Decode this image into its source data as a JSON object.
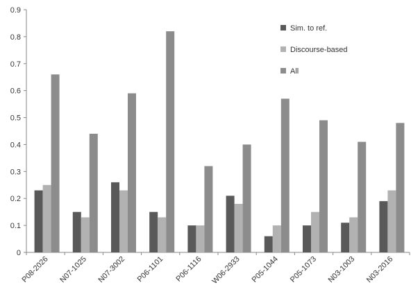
{
  "chart_data": {
    "type": "bar",
    "categories": [
      "P08-2026",
      "N07-1025",
      "N07-3002",
      "P06-1101",
      "P06-1116",
      "W06-2933",
      "P05-1044",
      "P05-1073",
      "N03-1003",
      "N03-2016"
    ],
    "series": [
      {
        "name": "Sim. to ref.",
        "color": "#595959",
        "values": [
          0.23,
          0.15,
          0.26,
          0.15,
          0.1,
          0.21,
          0.06,
          0.1,
          0.11,
          0.19
        ]
      },
      {
        "name": "Discourse-based",
        "color": "#b2b2b2",
        "values": [
          0.25,
          0.13,
          0.23,
          0.13,
          0.1,
          0.18,
          0.1,
          0.15,
          0.13,
          0.23
        ]
      },
      {
        "name": "All",
        "color": "#8c8c8c",
        "values": [
          0.66,
          0.44,
          0.59,
          0.82,
          0.32,
          0.4,
          0.57,
          0.49,
          0.41,
          0.48
        ]
      }
    ],
    "y_ticks": [
      "0",
      "0.1",
      "0.2",
      "0.3",
      "0.4",
      "0.5",
      "0.6",
      "0.7",
      "0.8",
      "0.9"
    ],
    "ylim": [
      0,
      0.9
    ],
    "title": "",
    "xlabel": "",
    "ylabel": "",
    "legend_position": "top-right",
    "grid": false
  }
}
